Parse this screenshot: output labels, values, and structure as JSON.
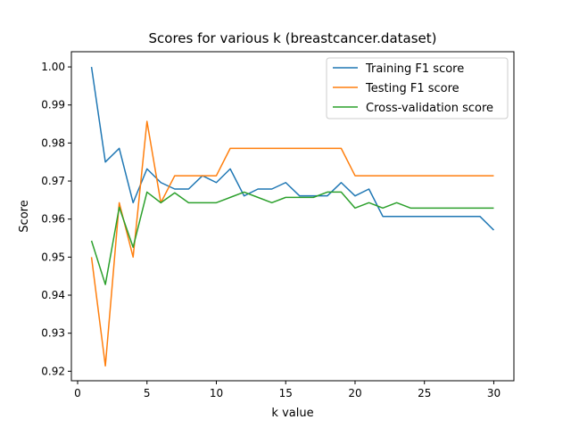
{
  "chart_data": {
    "type": "line",
    "title": "Scores for various k (breastcancer.dataset)",
    "xlabel": "k value",
    "ylabel": "Score",
    "xlim": [
      -0.45,
      31.45
    ],
    "ylim": [
      0.9175,
      1.004
    ],
    "xticks": [
      0,
      5,
      10,
      15,
      20,
      25,
      30
    ],
    "xtick_labels": [
      "0",
      "5",
      "10",
      "15",
      "20",
      "25",
      "30"
    ],
    "yticks": [
      0.92,
      0.93,
      0.94,
      0.95,
      0.96,
      0.97,
      0.98,
      0.99,
      1.0
    ],
    "ytick_labels": [
      "0.92",
      "0.93",
      "0.94",
      "0.95",
      "0.96",
      "0.97",
      "0.98",
      "0.99",
      "1.00"
    ],
    "grid": false,
    "legend": "top-right",
    "x": [
      1,
      2,
      3,
      4,
      5,
      6,
      7,
      8,
      9,
      10,
      11,
      12,
      13,
      14,
      15,
      16,
      17,
      18,
      19,
      20,
      21,
      22,
      23,
      24,
      25,
      26,
      27,
      28,
      29,
      30
    ],
    "series": [
      {
        "name": "Training F1 score",
        "color": "#1f77b4",
        "values": [
          1.0,
          0.975,
          0.9786,
          0.9643,
          0.9732,
          0.9696,
          0.9679,
          0.9679,
          0.9714,
          0.9696,
          0.9732,
          0.9661,
          0.9679,
          0.9679,
          0.9696,
          0.9661,
          0.9661,
          0.9661,
          0.9696,
          0.9661,
          0.9679,
          0.9607,
          0.9607,
          0.9607,
          0.9607,
          0.9607,
          0.9607,
          0.9607,
          0.9607,
          0.9571
        ]
      },
      {
        "name": "Testing F1 score",
        "color": "#ff7f0e",
        "values": [
          0.95,
          0.9214,
          0.9643,
          0.95,
          0.9857,
          0.9643,
          0.9714,
          0.9714,
          0.9714,
          0.9714,
          0.9786,
          0.9786,
          0.9786,
          0.9786,
          0.9786,
          0.9786,
          0.9786,
          0.9786,
          0.9786,
          0.9714,
          0.9714,
          0.9714,
          0.9714,
          0.9714,
          0.9714,
          0.9714,
          0.9714,
          0.9714,
          0.9714,
          0.9714
        ]
      },
      {
        "name": "Cross-validation score",
        "color": "#2ca02c",
        "values": [
          0.9543,
          0.9428,
          0.9631,
          0.9526,
          0.9671,
          0.9643,
          0.9669,
          0.9643,
          0.9643,
          0.9643,
          0.9657,
          0.9671,
          0.9657,
          0.9643,
          0.9657,
          0.9657,
          0.9657,
          0.9671,
          0.9671,
          0.9629,
          0.9643,
          0.9629,
          0.9643,
          0.9629,
          0.9629,
          0.9629,
          0.9629,
          0.9629,
          0.9629,
          0.9629
        ]
      }
    ]
  }
}
